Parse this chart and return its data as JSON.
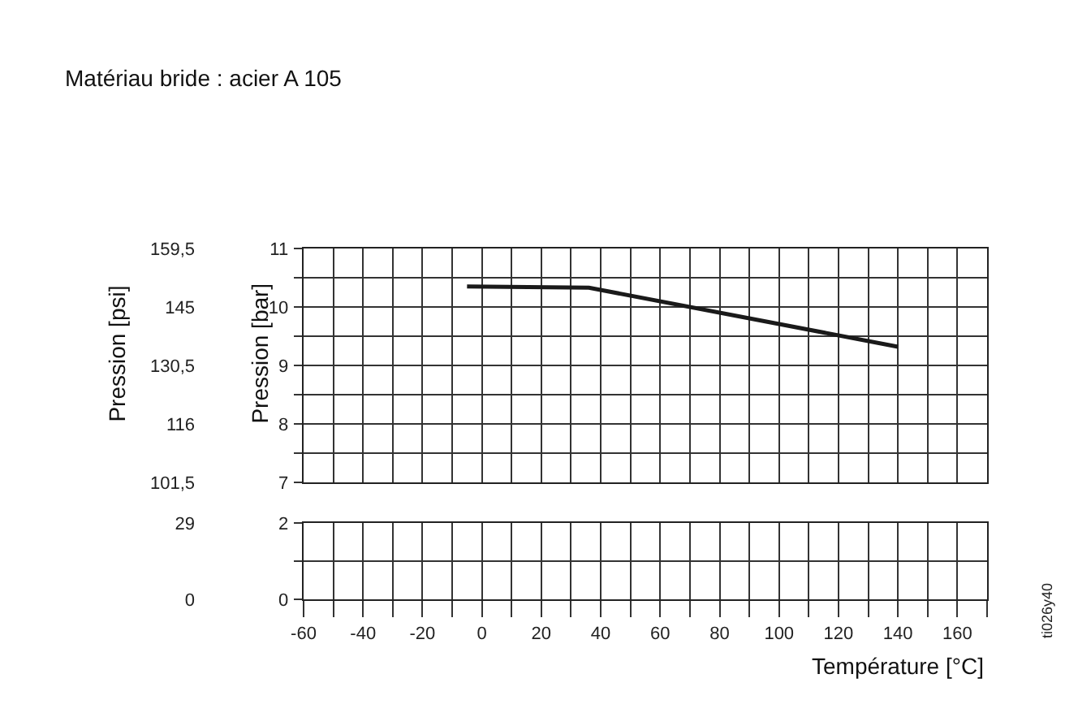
{
  "chart_data": [
    {
      "type": "line",
      "title": "Matériau bride : acier A 105",
      "ylabel": "Pression [bar]",
      "y2label": "Pression [psi]",
      "xlim": [
        -60,
        170
      ],
      "xticks": [
        -60,
        -40,
        -20,
        0,
        20,
        40,
        60,
        80,
        100,
        120,
        140,
        160
      ],
      "ylim": [
        7,
        11
      ],
      "yticks": [
        7,
        8,
        9,
        10,
        11
      ],
      "y2lim": [
        101.5,
        159.5
      ],
      "y2ticks": [
        {
          "value": 101.5,
          "label": "101,5"
        },
        116,
        {
          "value": 130.5,
          "label": "130,5"
        },
        145,
        {
          "value": 159.5,
          "label": "159,5"
        }
      ],
      "grid": true,
      "tick_labels": "y",
      "series": [
        {
          "color": "#1a1a1a",
          "x": [
            -5,
            36,
            140
          ],
          "values": [
            10.35,
            10.33,
            9.32
          ]
        }
      ]
    },
    {
      "type": "line",
      "xlabel": "Température [°C]",
      "xlim": [
        -60,
        170
      ],
      "xticks": [
        -60,
        -40,
        -20,
        0,
        20,
        40,
        60,
        80,
        100,
        120,
        140,
        160
      ],
      "ylim": [
        0,
        2
      ],
      "yticks": [
        0,
        2
      ],
      "y2lim": [
        0,
        29
      ],
      "y2ticks": [
        0,
        29
      ],
      "grid": true,
      "annotations": [
        "ti026y40"
      ]
    }
  ]
}
